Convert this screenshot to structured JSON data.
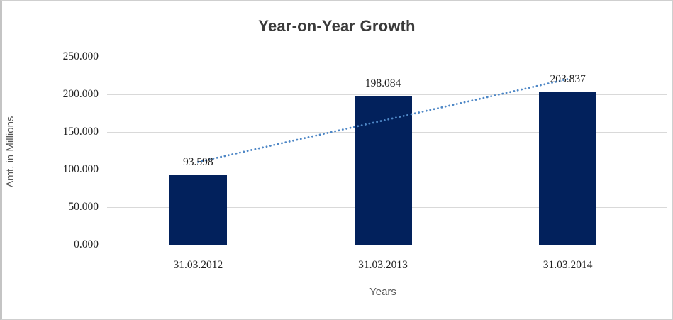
{
  "frame": {
    "background": "#ffffff",
    "border_color": "#cfcfcf"
  },
  "chart_data": {
    "type": "bar",
    "title": "Year-on-Year Growth",
    "xlabel": "Years",
    "ylabel": "Amt. in Millions",
    "categories": [
      "31.03.2012",
      "31.03.2013",
      "31.03.2014"
    ],
    "values": [
      93.598,
      198.084,
      203.837
    ],
    "value_labels": [
      "93.598",
      "198.084",
      "203.837"
    ],
    "ylim": [
      0,
      250
    ],
    "ytick_step": 50,
    "ytick_labels": [
      "0.000",
      "50.000",
      "100.000",
      "150.000",
      "200.000",
      "250.000"
    ],
    "grid": "horizontal-only",
    "legend": "none",
    "bar_color": "#02215c",
    "gridline_color": "#d9d9d9",
    "label_color": "#1f1f1f",
    "title_color": "#3b3b3b",
    "axis_title_color": "#595959",
    "trendline": {
      "type": "linear",
      "style": "dotted",
      "color": "#4e87c6",
      "fit_values": [
        110.054,
        165.173,
        220.293
      ]
    }
  }
}
